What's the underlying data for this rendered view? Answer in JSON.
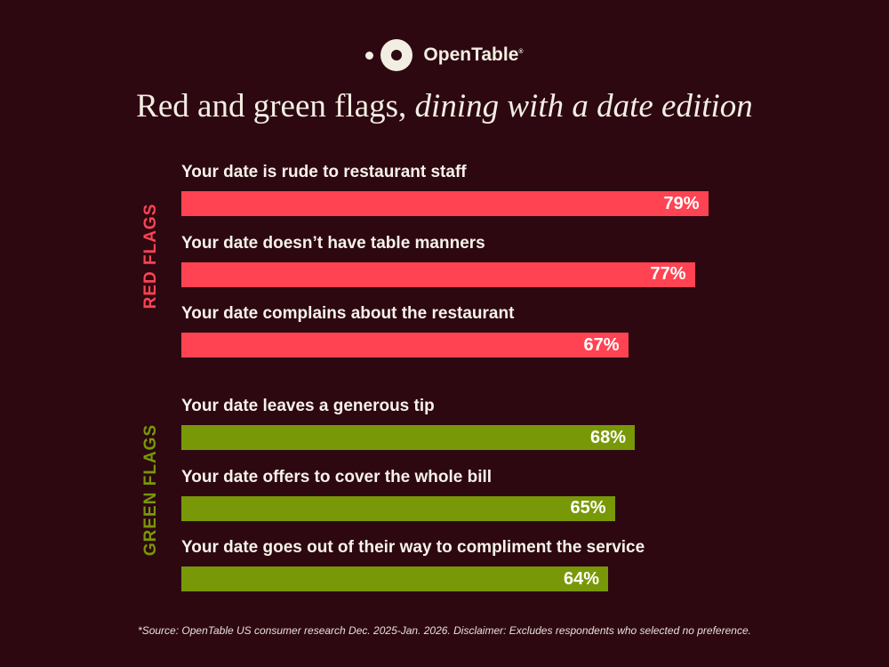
{
  "brand": {
    "name": "OpenTable",
    "mark": "®"
  },
  "chart_data": {
    "type": "bar",
    "orientation": "horizontal",
    "title": "Red and green flags,",
    "title_italic": "dining with a date edition",
    "xlim": [
      0,
      100
    ],
    "groups": [
      {
        "name": "RED FLAGS",
        "color": "#ff4352",
        "categories": [
          "Your date is rude to restaurant staff",
          "Your date doesn’t have table manners",
          "Your date complains about the restaurant"
        ],
        "values": [
          79,
          77,
          67
        ],
        "labels": [
          "79%",
          "77%",
          "67%"
        ]
      },
      {
        "name": "GREEN FLAGS",
        "color": "#799807",
        "categories": [
          "Your date leaves a generous tip",
          "Your date offers to cover the whole bill",
          "Your date goes out of their way to compliment the service"
        ],
        "values": [
          68,
          65,
          64
        ],
        "labels": [
          "68%",
          "65%",
          "64%"
        ]
      }
    ],
    "source": "*Source: OpenTable US consumer research Dec. 2025-Jan. 2026. Disclaimer: Excludes respondents who selected no preference."
  }
}
